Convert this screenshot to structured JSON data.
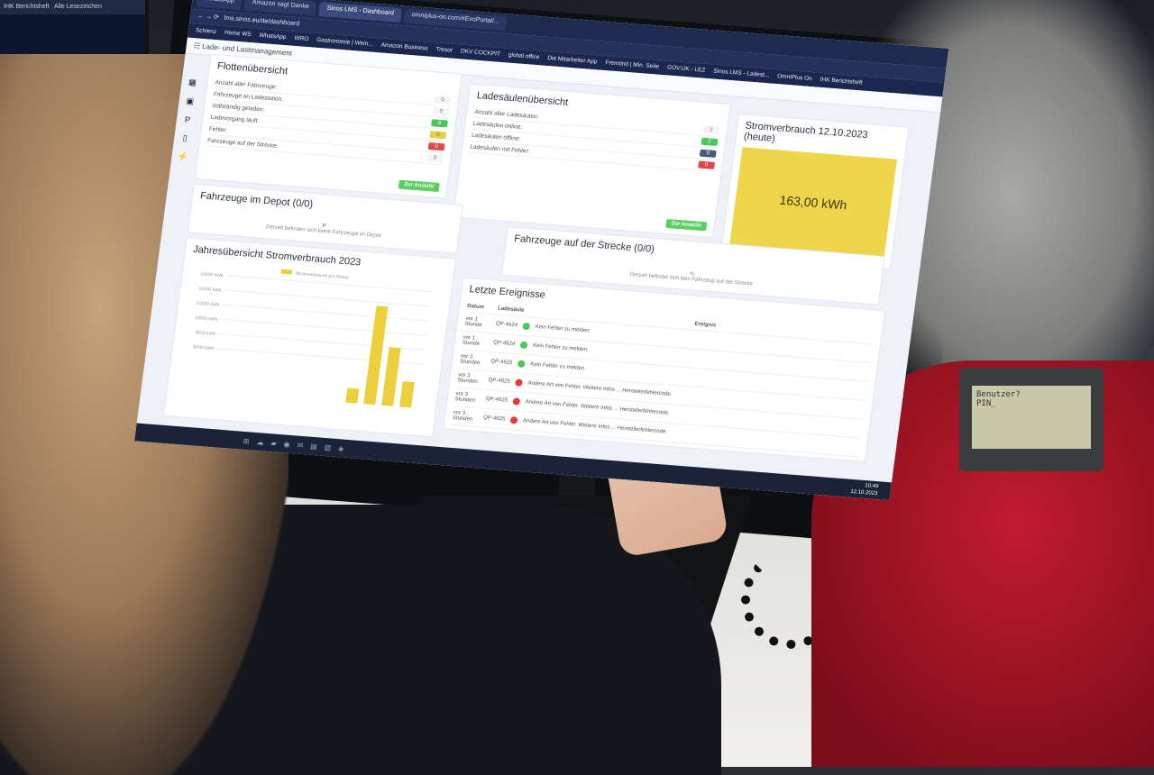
{
  "browser": {
    "tabs": [
      {
        "label": "WhatsApp",
        "active": false
      },
      {
        "label": "Amazon sagt Danke",
        "active": false
      },
      {
        "label": "Sinos LMS - Dashboard",
        "active": true
      },
      {
        "label": "omniplus-on.com/#EvoPortal/...",
        "active": false
      }
    ],
    "url": "lms.sinos.eu/de/dashboard",
    "bookmarks": [
      "Schlenz",
      "Home WS",
      "WhatsApp",
      "WRO",
      "Gastronomie | Wein...",
      "Amazon Business",
      "Tresor",
      "DKV COCKPIT",
      "global office",
      "Die Mitarbeiter App",
      "Fremtind | Min. Seite",
      "GOV.UK - LEZ",
      "Sinos LMS - Ladest...",
      "OmniPlus On",
      "IHK Berichtsheft"
    ]
  },
  "left_monitor": {
    "bookmarks": [
      "IHK Berichtsheft",
      "Alle Lesezeichen"
    ]
  },
  "app": {
    "title": "Lade- und Lastmanagement",
    "fleet": {
      "title": "Flottenübersicht",
      "rows": [
        {
          "label": "Anzahl aller Fahrzeuge:",
          "value": "0",
          "color": "plain"
        },
        {
          "label": "Fahrzeuge an Ladestation:",
          "value": "0",
          "color": "plain"
        },
        {
          "label": "Vollständig geladen:",
          "value": "0",
          "color": "green"
        },
        {
          "label": "Ladevorgang läuft:",
          "value": "0",
          "color": "yellow"
        },
        {
          "label": "Fehler:",
          "value": "0",
          "color": "red"
        },
        {
          "label": "Fahrzeuge auf der Strecke",
          "value": "0",
          "color": "plain"
        }
      ],
      "button": "Zur Ansicht"
    },
    "chargers": {
      "title": "Ladesäulenübersicht",
      "rows": [
        {
          "label": "Anzahl aller Ladesäulen:",
          "value": "2",
          "color": "plain"
        },
        {
          "label": "Ladesäulen online:",
          "value": "2",
          "color": "green"
        },
        {
          "label": "Ladesäulen offline:",
          "value": "0",
          "color": "blue"
        },
        {
          "label": "Ladesäulen mit Fehler:",
          "value": "0",
          "color": "red"
        }
      ],
      "button": "Zur Ansicht"
    },
    "power_today": {
      "title": "Stromverbrauch 12.10.2023 (heute)",
      "value": "163,00 kWh",
      "color": "#efd54a"
    },
    "depot": {
      "title": "Fahrzeuge im Depot (0/0)",
      "icon": "P",
      "empty": "Derzeit befinden sich keine Fahrzeuge im Depot"
    },
    "route": {
      "title": "Fahrzeuge auf der Strecke (0/0)",
      "empty": "Derzeit befindet sich kein Fahrzeug auf der Strecke"
    },
    "chart": {
      "title": "Jahresübersicht Stromverbrauch 2023",
      "type": "bar",
      "legend": "Stromverbrauch pro Monat",
      "y_ticks": [
        "16000 kWh",
        "14000 kWh",
        "12000 kWh",
        "10000 kWh",
        "8000 kWh",
        "6000 kWh"
      ],
      "ylim": [
        0,
        16000
      ],
      "values": [
        2000,
        13500,
        8000,
        3500
      ],
      "color": "#eccf3c"
    },
    "events": {
      "title": "Letzte Ereignisse",
      "headers": {
        "date": "Datum",
        "charger": "Ladesäule",
        "event": "Ereignis"
      },
      "rows": [
        {
          "date": "vor 1 Stunde",
          "charger": "QP-4624",
          "status": "ok",
          "text": "Kein Fehler zu melden."
        },
        {
          "date": "vor 1 Stunde",
          "charger": "QP-4624",
          "status": "ok",
          "text": "Kein Fehler zu melden."
        },
        {
          "date": "vor 3 Stunden",
          "charger": "QP-4625",
          "status": "ok",
          "text": "Kein Fehler zu melden."
        },
        {
          "date": "vor 3 Stunden",
          "charger": "QP-4625",
          "status": "error",
          "text": "Andere Art von Fehler. Weitere Infos ... Herstellerfehlercode."
        },
        {
          "date": "vor 3 Stunden",
          "charger": "QP-4625",
          "status": "error",
          "text": "Andere Art von Fehler. Weitere Infos ... Herstellerfehlercode."
        },
        {
          "date": "vor 3 Stunden",
          "charger": "QP-4625",
          "status": "error",
          "text": "Andere Art von Fehler. Weitere Infos ... Herstellerfehlercode."
        }
      ]
    },
    "clock": {
      "time": "10:49",
      "date": "12.10.2023"
    }
  },
  "desk_phone": {
    "lines": [
      "Benutzer?",
      "PIN_"
    ]
  }
}
